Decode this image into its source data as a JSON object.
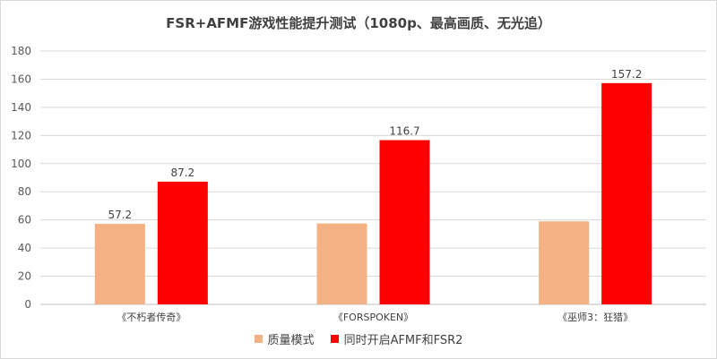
{
  "chart_data": {
    "type": "bar",
    "title": "FSR+AFMF游戏性能提升测试（1080p、最高画质、无光追）",
    "categories": [
      "《不朽者传奇》",
      "《FORSPOKEN》",
      "《巫师3：狂猎》"
    ],
    "series": [
      {
        "name": "质量模式",
        "color": "#f4b183",
        "values": [
          57.2,
          57.5,
          59.0
        ],
        "labels": [
          "57.2",
          "",
          ""
        ]
      },
      {
        "name": "同时开启AFMF和FSR2",
        "color": "#ff0000",
        "values": [
          87.2,
          116.7,
          157.2
        ],
        "labels": [
          "87.2",
          "116.7",
          "157.2"
        ]
      }
    ],
    "y_ticks": [
      "0",
      "20",
      "40",
      "60",
      "80",
      "100",
      "120",
      "140",
      "160",
      "180"
    ],
    "ylim": [
      0,
      180
    ],
    "grid": true,
    "legend_position": "bottom"
  }
}
